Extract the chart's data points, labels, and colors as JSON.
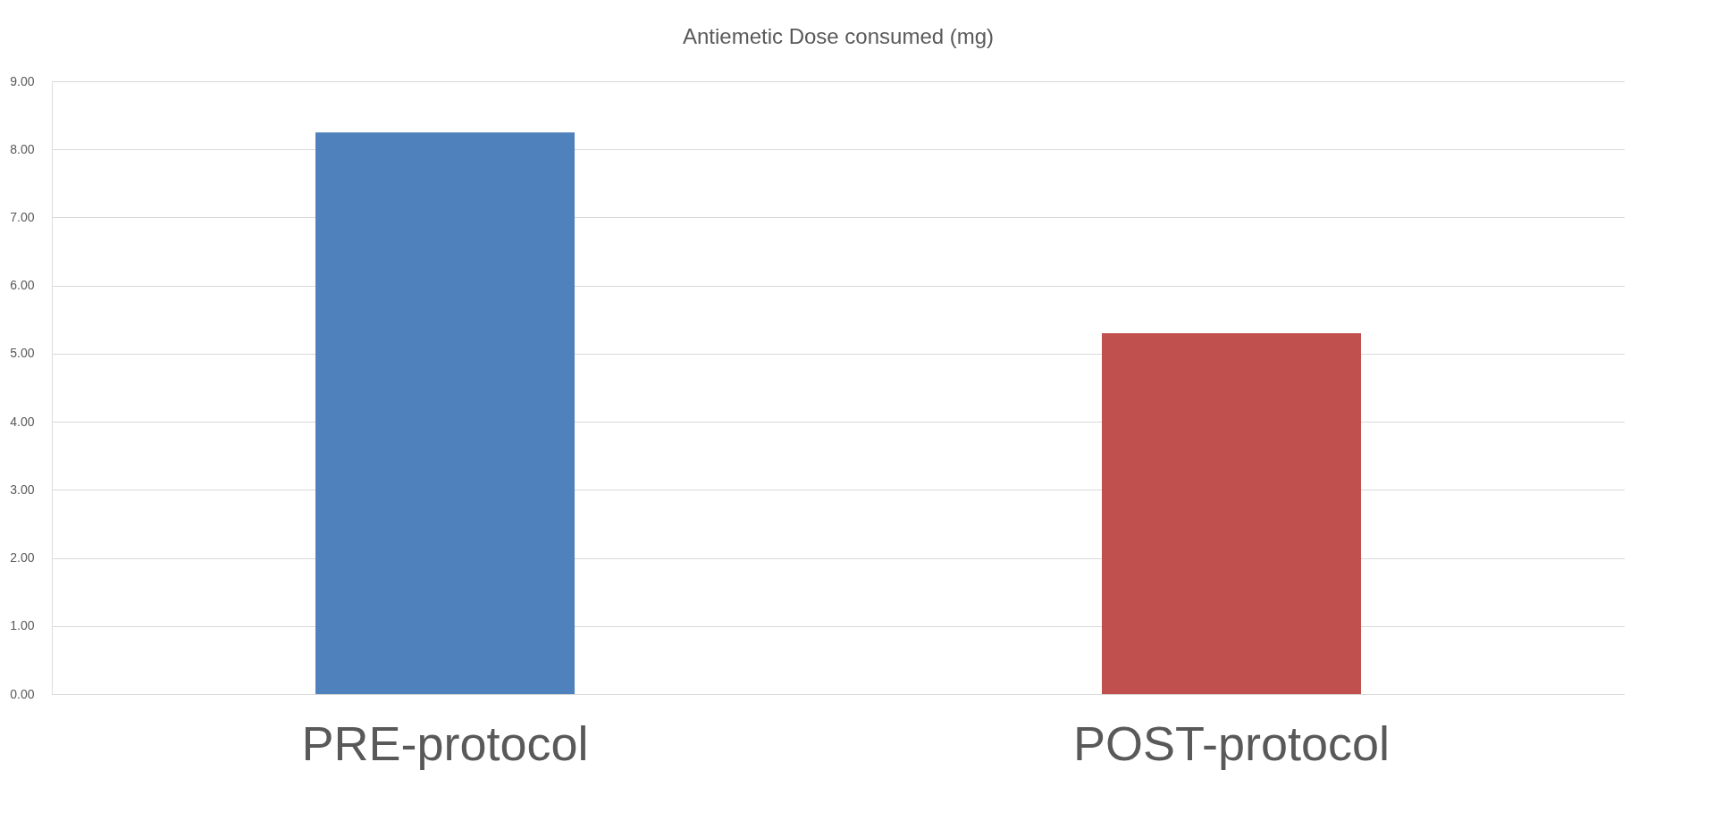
{
  "chart_data": {
    "type": "bar",
    "title": "Antiemetic Dose consumed (mg)",
    "categories": [
      "PRE-protocol",
      "POST-protocol"
    ],
    "values": [
      8.25,
      5.3
    ],
    "colors": [
      "#4f81bd",
      "#c0504d"
    ],
    "ylim": [
      0,
      9
    ],
    "yticks": [
      {
        "value": 0,
        "label": "0.00"
      },
      {
        "value": 1,
        "label": "1.00"
      },
      {
        "value": 2,
        "label": "2.00"
      },
      {
        "value": 3,
        "label": "3.00"
      },
      {
        "value": 4,
        "label": "4.00"
      },
      {
        "value": 5,
        "label": "5.00"
      },
      {
        "value": 6,
        "label": "6.00"
      },
      {
        "value": 7,
        "label": "7.00"
      },
      {
        "value": 8,
        "label": "8.00"
      },
      {
        "value": 9,
        "label": "9.00"
      }
    ],
    "grid": "y"
  }
}
